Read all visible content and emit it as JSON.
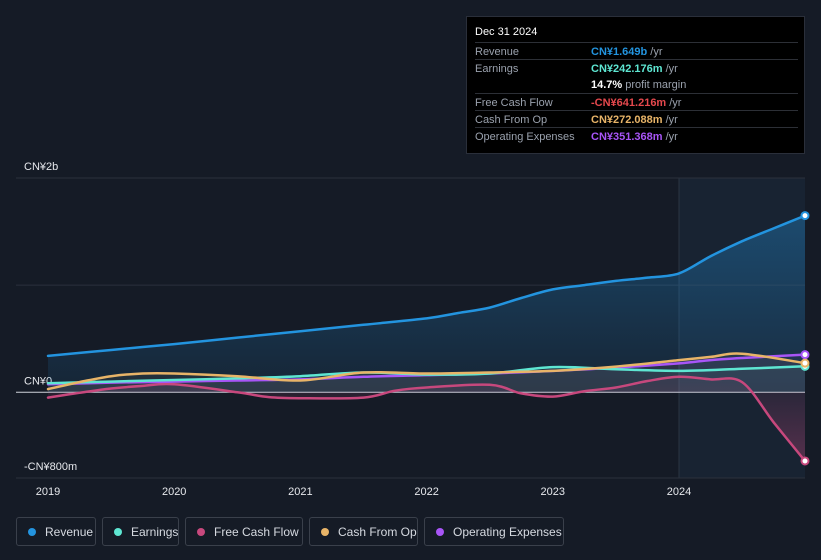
{
  "colors": {
    "revenue": "#2394df",
    "earnings": "#5ee6d2",
    "fcf": "#c7487d",
    "cfo": "#e8b468",
    "opex": "#a855f7",
    "background": "#151b26"
  },
  "tooltip": {
    "date": "Dec 31 2024",
    "rows": [
      {
        "label": "Revenue",
        "value": "CN¥1.649b",
        "unit": "/yr",
        "color": "#2394df"
      },
      {
        "label": "Earnings",
        "value": "CN¥242.176m",
        "unit": "/yr",
        "color": "#5ee6d2"
      },
      {
        "label": "",
        "value": "14.7%",
        "unit": "profit margin",
        "color": "#ffffff"
      },
      {
        "label": "Free Cash Flow",
        "value": "-CN¥641.216m",
        "unit": "/yr",
        "color": "#e5484d"
      },
      {
        "label": "Cash From Op",
        "value": "CN¥272.088m",
        "unit": "/yr",
        "color": "#e8b468"
      },
      {
        "label": "Operating Expenses",
        "value": "CN¥351.368m",
        "unit": "/yr",
        "color": "#a855f7"
      }
    ]
  },
  "legend": [
    {
      "label": "Revenue",
      "color": "#2394df"
    },
    {
      "label": "Earnings",
      "color": "#5ee6d2"
    },
    {
      "label": "Free Cash Flow",
      "color": "#c7487d"
    },
    {
      "label": "Cash From Op",
      "color": "#e8b468"
    },
    {
      "label": "Operating Expenses",
      "color": "#a855f7"
    }
  ],
  "chart_data": {
    "type": "line",
    "y_unit": "CN¥ millions",
    "ylim": [
      -800,
      2000
    ],
    "y_tick_labels": [
      {
        "value": 2000,
        "label": "CN¥2b"
      },
      {
        "value": 0,
        "label": "CN¥0"
      },
      {
        "value": -800,
        "label": "-CN¥800m"
      }
    ],
    "x_tick_labels": [
      "2019",
      "2020",
      "2021",
      "2022",
      "2023",
      "2024"
    ],
    "x_tick_values": [
      2019,
      2020,
      2021,
      2022,
      2023,
      2024
    ],
    "xlim": [
      2018.75,
      2025.0
    ],
    "forecast_shade_start": 2024.0,
    "series": [
      {
        "name": "Revenue",
        "key": "revenue",
        "x": [
          2019.0,
          2019.5,
          2020.0,
          2020.5,
          2021.0,
          2021.5,
          2022.0,
          2022.25,
          2022.5,
          2022.75,
          2023.0,
          2023.25,
          2023.5,
          2023.75,
          2024.0,
          2024.25,
          2024.5,
          2024.75,
          2025.0
        ],
        "y": [
          340,
          395,
          450,
          510,
          570,
          630,
          690,
          740,
          790,
          880,
          960,
          1000,
          1040,
          1070,
          1110,
          1270,
          1410,
          1530,
          1649
        ]
      },
      {
        "name": "Earnings",
        "key": "earnings",
        "x": [
          2019.0,
          2019.5,
          2020.0,
          2020.5,
          2021.0,
          2021.5,
          2022.0,
          2022.5,
          2023.0,
          2023.5,
          2024.0,
          2024.5,
          2025.0
        ],
        "y": [
          85,
          100,
          115,
          130,
          150,
          185,
          165,
          175,
          235,
          215,
          200,
          220,
          242.176
        ]
      },
      {
        "name": "Free Cash Flow",
        "key": "fcf",
        "x": [
          2019.0,
          2019.25,
          2019.5,
          2019.75,
          2020.0,
          2020.5,
          2020.75,
          2021.0,
          2021.5,
          2021.75,
          2022.0,
          2022.5,
          2022.75,
          2023.0,
          2023.25,
          2023.5,
          2023.75,
          2024.0,
          2024.25,
          2024.5,
          2024.75,
          2025.0
        ],
        "y": [
          -50,
          -5,
          35,
          60,
          75,
          0,
          -45,
          -55,
          -50,
          15,
          45,
          70,
          -10,
          -40,
          10,
          45,
          105,
          145,
          120,
          95,
          -280,
          -641.216
        ]
      },
      {
        "name": "Cash From Op",
        "key": "cfo",
        "x": [
          2019.0,
          2019.25,
          2019.5,
          2019.75,
          2020.0,
          2020.5,
          2021.0,
          2021.5,
          2022.0,
          2022.5,
          2023.0,
          2023.5,
          2024.0,
          2024.25,
          2024.5,
          2025.0
        ],
        "y": [
          30,
          95,
          150,
          175,
          175,
          150,
          110,
          185,
          175,
          185,
          200,
          240,
          300,
          330,
          360,
          272.088
        ]
      },
      {
        "name": "Operating Expenses",
        "key": "opex",
        "x": [
          2019.0,
          2019.5,
          2020.0,
          2020.5,
          2021.0,
          2021.5,
          2022.0,
          2022.5,
          2023.0,
          2023.5,
          2024.0,
          2024.25,
          2024.5,
          2025.0
        ],
        "y": [
          75,
          90,
          100,
          110,
          120,
          145,
          160,
          175,
          200,
          230,
          270,
          300,
          320,
          351.368
        ]
      }
    ]
  }
}
